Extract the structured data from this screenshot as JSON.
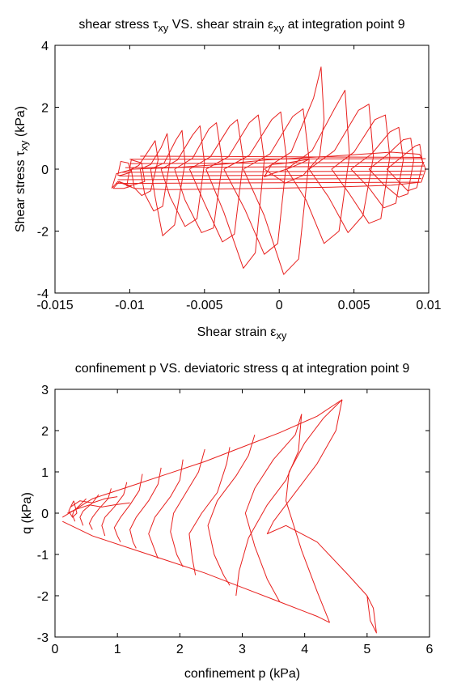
{
  "chart_data": [
    {
      "type": "line",
      "title": "shear stress τxy VS. shear strain εxy at integration point 9",
      "title_parts": [
        "shear stress τ",
        "xy",
        " VS. shear strain ε",
        "xy",
        " at integration point 9"
      ],
      "xlabel": "Shear strain εxy",
      "xlabel_parts": [
        "Shear strain ε",
        "xy"
      ],
      "ylabel": "Shear stress τxy (kPa)",
      "ylabel_parts": [
        "Shear stress τ",
        "xy",
        " (kPa)"
      ],
      "xlim": [
        -0.015,
        0.01
      ],
      "ylim": [
        -4,
        4
      ],
      "xticks": [
        -0.015,
        -0.01,
        -0.005,
        0,
        0.005,
        0.01
      ],
      "xtick_labels": [
        "-0.015",
        "-0.01",
        "-0.005",
        "0",
        "0.005",
        "0.01"
      ],
      "yticks": [
        -4,
        -2,
        0,
        2,
        4
      ],
      "ytick_labels": [
        "-4",
        "-2",
        "0",
        "2",
        "4"
      ],
      "grid": false,
      "color": "#e8201e",
      "series": [
        {
          "x": [
            -0.0005,
            0.0005,
            0.0015,
            0.002,
            0.0015,
            0.0005,
            -0.0005,
            -0.001,
            -0.0005
          ],
          "y": [
            0.15,
            0.2,
            0.28,
            0.32,
            0.2,
            0.0,
            -0.15,
            -0.25,
            0.15
          ]
        },
        {
          "x": [
            -0.0112,
            -0.0109,
            -0.0098,
            -0.007,
            -0.004,
            -0.0008,
            0.0035,
            0.0075,
            0.0094,
            0.0098,
            0.0095,
            0.0075,
            0.0035,
            -0.0008,
            -0.0045,
            -0.0075,
            -0.0097,
            -0.0108,
            -0.0112
          ],
          "y": [
            -0.62,
            -0.15,
            0.0,
            0.05,
            0.15,
            0.3,
            0.42,
            0.55,
            0.48,
            0.0,
            -0.42,
            -0.52,
            -0.58,
            -0.62,
            -0.64,
            -0.66,
            -0.62,
            -0.4,
            -0.62
          ]
        },
        {
          "x": [
            -0.0111,
            -0.0107,
            -0.0099,
            -0.0104,
            -0.0111
          ],
          "y": [
            -0.62,
            -0.4,
            -0.55,
            -0.62,
            -0.62
          ]
        },
        {
          "x": [
            -0.0108,
            -0.0106,
            -0.0101,
            -0.0099,
            -0.0106,
            -0.0108
          ],
          "y": [
            -0.2,
            0.25,
            0.2,
            -0.1,
            -0.2,
            -0.2
          ]
        },
        {
          "x": [
            -0.0102,
            -0.0099,
            -0.0092,
            -0.009,
            -0.0097,
            -0.0102
          ],
          "y": [
            -0.55,
            0.3,
            0.2,
            -0.4,
            -0.5,
            -0.55
          ]
        },
        {
          "x": [
            -0.0099,
            -0.0094,
            -0.0088,
            -0.0083,
            -0.0081,
            -0.0086,
            -0.0092,
            -0.0097,
            -0.0099
          ],
          "y": [
            0.0,
            0.12,
            0.55,
            0.92,
            0.3,
            -0.7,
            -0.85,
            -0.6,
            0.0
          ]
        },
        {
          "x": [
            -0.0093,
            -0.0086,
            -0.0079,
            -0.0075,
            -0.0073,
            -0.0078,
            -0.0084,
            -0.009,
            -0.0093
          ],
          "y": [
            0.0,
            0.15,
            0.7,
            1.15,
            0.3,
            -1.2,
            -1.35,
            -0.8,
            0.0
          ]
        },
        {
          "x": [
            -0.0086,
            -0.0077,
            -0.0069,
            -0.0065,
            -0.0063,
            -0.007,
            -0.0078,
            -0.0083,
            -0.0086
          ],
          "y": [
            0.0,
            0.2,
            0.95,
            1.25,
            0.2,
            -1.8,
            -2.15,
            -0.9,
            0.0
          ]
        },
        {
          "x": [
            -0.0079,
            -0.0068,
            -0.0058,
            -0.0053,
            -0.005,
            -0.0055,
            -0.0063,
            -0.0073,
            -0.0079
          ],
          "y": [
            0.0,
            0.3,
            1.1,
            1.4,
            0.2,
            -1.6,
            -1.85,
            -0.9,
            0.0
          ]
        },
        {
          "x": [
            -0.007,
            -0.0058,
            -0.0047,
            -0.0042,
            -0.0038,
            -0.0044,
            -0.0052,
            -0.0063,
            -0.007
          ],
          "y": [
            0.0,
            0.35,
            1.3,
            1.5,
            0.2,
            -1.9,
            -2.05,
            -1.0,
            0.0
          ]
        },
        {
          "x": [
            -0.006,
            -0.0046,
            -0.0033,
            -0.0028,
            -0.0024,
            -0.003,
            -0.0038,
            -0.005,
            -0.006
          ],
          "y": [
            0.0,
            0.4,
            1.4,
            1.6,
            0.3,
            -2.1,
            -2.35,
            -1.1,
            0.0
          ]
        },
        {
          "x": [
            -0.0049,
            -0.0034,
            -0.002,
            -0.0014,
            -0.001,
            -0.0016,
            -0.0024,
            -0.0037,
            -0.0049
          ],
          "y": [
            0.0,
            0.4,
            1.5,
            1.75,
            0.3,
            -2.7,
            -3.2,
            -1.4,
            0.0
          ]
        },
        {
          "x": [
            -0.0037,
            -0.002,
            -0.0005,
            0.0001,
            0.0005,
            -0.0001,
            -0.001,
            -0.0023,
            -0.0037
          ],
          "y": [
            0.0,
            0.45,
            1.6,
            1.85,
            0.3,
            -2.4,
            -2.75,
            -1.3,
            0.0
          ]
        },
        {
          "x": [
            -0.0024,
            -0.0006,
            0.0009,
            0.0016,
            0.002,
            0.0013,
            0.0003,
            -0.001,
            -0.0024
          ],
          "y": [
            0.0,
            0.5,
            1.7,
            1.95,
            0.3,
            -2.9,
            -3.4,
            -1.5,
            0.0
          ]
        },
        {
          "x": [
            -0.001,
            0.0008,
            0.0023,
            0.0028,
            0.003,
            0.0027,
            0.0016,
            0.0004,
            -0.001
          ],
          "y": [
            0.0,
            0.55,
            2.3,
            3.3,
            1.6,
            0.4,
            -0.2,
            -0.45,
            0.0
          ]
        },
        {
          "x": [
            0.0005,
            0.0022,
            0.0037,
            0.0044,
            0.0047,
            0.004,
            0.003,
            0.0018,
            0.0005
          ],
          "y": [
            0.0,
            0.6,
            1.95,
            2.55,
            0.45,
            -2.0,
            -2.4,
            -1.0,
            0.0
          ]
        },
        {
          "x": [
            0.002,
            0.0037,
            0.0053,
            0.006,
            0.0063,
            0.0056,
            0.0046,
            0.0033,
            0.002
          ],
          "y": [
            0.0,
            0.6,
            1.9,
            2.1,
            0.4,
            -1.5,
            -2.05,
            -0.9,
            0.0
          ]
        },
        {
          "x": [
            0.0035,
            0.005,
            0.0064,
            0.0071,
            0.0074,
            0.0068,
            0.006,
            0.0047,
            0.0035
          ],
          "y": [
            0.0,
            0.55,
            1.6,
            1.75,
            0.4,
            -1.6,
            -1.75,
            -0.8,
            0.0
          ]
        },
        {
          "x": [
            0.0048,
            0.0062,
            0.0074,
            0.008,
            0.0083,
            0.0078,
            0.007,
            0.006,
            0.0048
          ],
          "y": [
            0.0,
            0.5,
            1.2,
            1.35,
            0.3,
            -1.1,
            -1.25,
            -0.6,
            0.0
          ]
        },
        {
          "x": [
            0.006,
            0.0072,
            0.0083,
            0.0088,
            0.009,
            0.0086,
            0.008,
            0.007,
            0.006
          ],
          "y": [
            0.0,
            0.45,
            0.95,
            1.0,
            0.3,
            -0.8,
            -0.9,
            -0.5,
            0.0
          ]
        },
        {
          "x": [
            0.0072,
            0.0082,
            0.0091,
            0.0094,
            0.0096,
            0.0092,
            0.0086,
            0.008,
            0.0072
          ],
          "y": [
            0.0,
            0.4,
            0.75,
            0.8,
            0.2,
            -0.6,
            -0.7,
            -0.4,
            0.0
          ]
        },
        {
          "x": [
            -0.01,
            0.0098
          ],
          "y": [
            0.32,
            0.34
          ]
        },
        {
          "x": [
            -0.01,
            0.0097
          ],
          "y": [
            0.18,
            0.22
          ]
        },
        {
          "x": [
            -0.0103,
            0.0097
          ],
          "y": [
            0.05,
            0.1
          ]
        },
        {
          "x": [
            -0.0105,
            0.0097
          ],
          "y": [
            -0.1,
            -0.06
          ]
        },
        {
          "x": [
            -0.0107,
            0.0096
          ],
          "y": [
            -0.22,
            -0.18
          ]
        },
        {
          "x": [
            -0.0108,
            0.0095
          ],
          "y": [
            -0.34,
            -0.3
          ]
        },
        {
          "x": [
            -0.0109,
            0.0094
          ],
          "y": [
            -0.46,
            -0.42
          ]
        },
        {
          "x": [
            -0.0093,
            0.0095
          ],
          "y": [
            0.42,
            0.38
          ]
        }
      ]
    },
    {
      "type": "line",
      "title": "confinement p VS. deviatoric stress q at integration point 9",
      "xlabel": "confinement p (kPa)",
      "ylabel": "q (kPa)",
      "xlim": [
        0,
        6
      ],
      "ylim": [
        -3,
        3
      ],
      "xticks": [
        0,
        1,
        2,
        3,
        4,
        5,
        6
      ],
      "xtick_labels": [
        "0",
        "1",
        "2",
        "3",
        "4",
        "5",
        "6"
      ],
      "yticks": [
        -3,
        -2,
        -1,
        0,
        1,
        2,
        3
      ],
      "ytick_labels": [
        "-3",
        "-2",
        "-1",
        "0",
        "1",
        "2",
        "3"
      ],
      "grid": false,
      "color": "#e8201e",
      "series": [
        {
          "x": [
            0.12,
            0.6,
            1.2,
            1.8,
            2.4,
            3.0,
            3.6,
            4.2,
            4.6
          ],
          "y": [
            -0.1,
            0.35,
            0.65,
            0.95,
            1.25,
            1.6,
            1.95,
            2.35,
            2.75
          ]
        },
        {
          "x": [
            0.12,
            0.6,
            1.2,
            1.8,
            2.4,
            3.0,
            3.6,
            4.2,
            4.4
          ],
          "y": [
            -0.2,
            -0.55,
            -0.85,
            -1.15,
            -1.45,
            -1.8,
            -2.15,
            -2.5,
            -2.65
          ]
        },
        {
          "x": [
            4.6,
            4.5,
            4.2,
            3.8,
            3.5,
            3.4,
            3.7,
            4.2,
            4.7,
            5.0
          ],
          "y": [
            2.75,
            2.0,
            1.2,
            0.4,
            -0.2,
            -0.5,
            -0.3,
            -0.7,
            -1.5,
            -2.0
          ]
        },
        {
          "x": [
            5.0,
            5.1,
            5.15,
            5.05,
            5.0
          ],
          "y": [
            -2.0,
            -2.3,
            -2.9,
            -2.6,
            -2.0
          ]
        },
        {
          "x": [
            4.6,
            4.3,
            4.0,
            3.75,
            3.7,
            3.95,
            4.2,
            4.4
          ],
          "y": [
            2.75,
            2.3,
            1.7,
            1.0,
            0.3,
            -0.9,
            -1.9,
            -2.65
          ]
        },
        {
          "x": [
            3.95,
            3.85,
            3.5,
            3.2,
            3.05,
            3.2,
            3.4,
            3.6
          ],
          "y": [
            2.4,
            1.9,
            1.3,
            0.6,
            0.0,
            -0.8,
            -1.6,
            -2.15
          ]
        },
        {
          "x": [
            3.95,
            3.9,
            3.7,
            3.4,
            3.1,
            2.95,
            2.9
          ],
          "y": [
            2.4,
            1.5,
            0.8,
            0.2,
            -0.6,
            -1.4,
            -2.0
          ]
        },
        {
          "x": [
            3.2,
            3.1,
            2.9,
            2.6,
            2.45,
            2.55,
            2.7,
            2.8
          ],
          "y": [
            1.9,
            1.4,
            0.9,
            0.3,
            -0.3,
            -1.0,
            -1.5,
            -1.75
          ]
        },
        {
          "x": [
            2.8,
            2.75,
            2.6,
            2.35,
            2.15,
            2.2,
            2.25
          ],
          "y": [
            1.6,
            1.2,
            0.5,
            0.0,
            -0.5,
            -1.1,
            -1.5
          ]
        },
        {
          "x": [
            2.4,
            2.3,
            2.1,
            1.9,
            1.85,
            1.95,
            2.05
          ],
          "y": [
            1.55,
            1.0,
            0.5,
            0.0,
            -0.45,
            -1.0,
            -1.3
          ]
        },
        {
          "x": [
            2.05,
            2.0,
            1.85,
            1.6,
            1.5,
            1.6,
            1.65
          ],
          "y": [
            1.3,
            0.8,
            0.4,
            -0.1,
            -0.5,
            -0.9,
            -1.1
          ]
        },
        {
          "x": [
            1.7,
            1.65,
            1.5,
            1.3,
            1.2,
            1.25,
            1.3
          ],
          "y": [
            1.1,
            0.7,
            0.3,
            -0.1,
            -0.4,
            -0.7,
            -0.85
          ]
        },
        {
          "x": [
            1.4,
            1.35,
            1.2,
            1.05,
            0.95,
            1.0,
            1.05
          ],
          "y": [
            0.95,
            0.55,
            0.2,
            -0.1,
            -0.35,
            -0.55,
            -0.7
          ]
        },
        {
          "x": [
            1.15,
            1.1,
            0.95,
            0.8,
            0.75,
            0.8
          ],
          "y": [
            0.75,
            0.45,
            0.15,
            -0.1,
            -0.3,
            -0.55
          ]
        },
        {
          "x": [
            0.9,
            0.85,
            0.7,
            0.6,
            0.55,
            0.6
          ],
          "y": [
            0.6,
            0.35,
            0.1,
            -0.1,
            -0.25,
            -0.4
          ]
        },
        {
          "x": [
            0.7,
            0.6,
            0.45,
            0.4,
            0.45
          ],
          "y": [
            0.45,
            0.25,
            0.05,
            -0.1,
            -0.3
          ]
        },
        {
          "x": [
            0.5,
            0.4,
            0.3,
            0.28,
            0.32
          ],
          "y": [
            0.35,
            0.2,
            0.05,
            -0.05,
            -0.2
          ]
        },
        {
          "x": [
            0.3,
            0.25,
            0.22,
            0.28,
            0.35,
            0.3
          ],
          "y": [
            0.3,
            0.15,
            0.05,
            -0.1,
            0.0,
            0.3
          ]
        },
        {
          "x": [
            0.2,
            0.35,
            0.55,
            0.75,
            0.95,
            1.2
          ],
          "y": [
            0.0,
            0.1,
            0.2,
            0.15,
            0.2,
            0.25
          ]
        },
        {
          "x": [
            0.25,
            0.4,
            0.6,
            0.8,
            1.0
          ],
          "y": [
            0.15,
            0.3,
            0.25,
            0.35,
            0.4
          ]
        }
      ]
    }
  ]
}
